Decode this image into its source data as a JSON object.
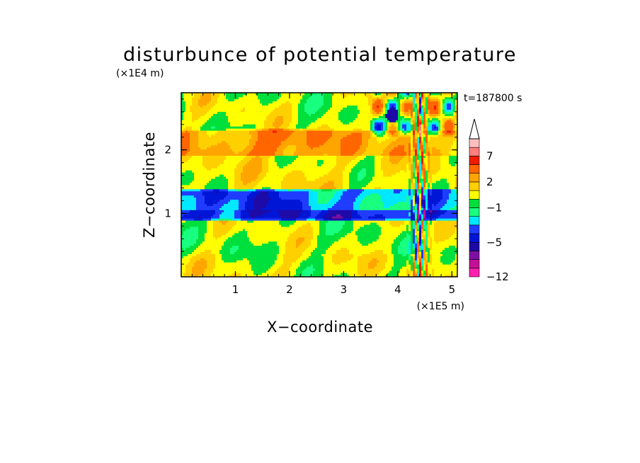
{
  "chart_data": {
    "type": "heatmap",
    "title": "disturbunce of potential temperature",
    "time_label": "t=187800 s",
    "xlabel": "X−coordinate",
    "ylabel": "Z−coordinate",
    "x_unit": "(×1E5 m)",
    "y_unit": "(×1E4 m)",
    "xlim": [
      0,
      5.1
    ],
    "ylim": [
      0,
      2.9
    ],
    "x_ticks": [
      "1",
      "2",
      "3",
      "4",
      "5"
    ],
    "y_ticks": [
      "1",
      "2"
    ],
    "x_tick_values": [
      1,
      2,
      3,
      4,
      5
    ],
    "y_tick_values": [
      1,
      2
    ],
    "grid": false,
    "colorbar": {
      "placement": "right",
      "labels": [
        "7",
        "2",
        "−1",
        "−5",
        "−12"
      ],
      "label_levels": [
        7,
        2,
        -1,
        -5,
        -12
      ],
      "level_edges": [
        -12,
        -10,
        -8,
        -6,
        -5,
        -4,
        -3,
        -2,
        -1,
        0,
        1,
        2,
        3,
        5,
        7,
        9,
        11
      ],
      "colors": [
        "#ff1fae",
        "#c21096",
        "#7d0fa3",
        "#1e0aa6",
        "#0016d6",
        "#1f3cff",
        "#00e8ff",
        "#19ff80",
        "#00e03c",
        "#ffff00",
        "#ffd000",
        "#ffa500",
        "#ff6600",
        "#ee1c00",
        "#ff7e7e",
        "#ffbfbf"
      ],
      "overflow_arrow_color": "#ffffff"
    },
    "field_summary": [
      {
        "z_range": [
          0,
          0.35
        ],
        "description_level": 0.5
      },
      {
        "z_range": [
          0.35,
          0.9
        ],
        "description_level": 0.2
      },
      {
        "z_range": [
          0.9,
          1.05
        ],
        "description_level": -3.5
      },
      {
        "z_range": [
          1.05,
          1.4
        ],
        "description_level": -2.5
      },
      {
        "z_range": [
          1.4,
          1.9
        ],
        "description_level": 0.8
      },
      {
        "z_range": [
          1.9,
          2.3
        ],
        "description_level": 2.0
      },
      {
        "z_range": [
          2.3,
          2.9
        ],
        "description_level": 0.3
      }
    ]
  }
}
